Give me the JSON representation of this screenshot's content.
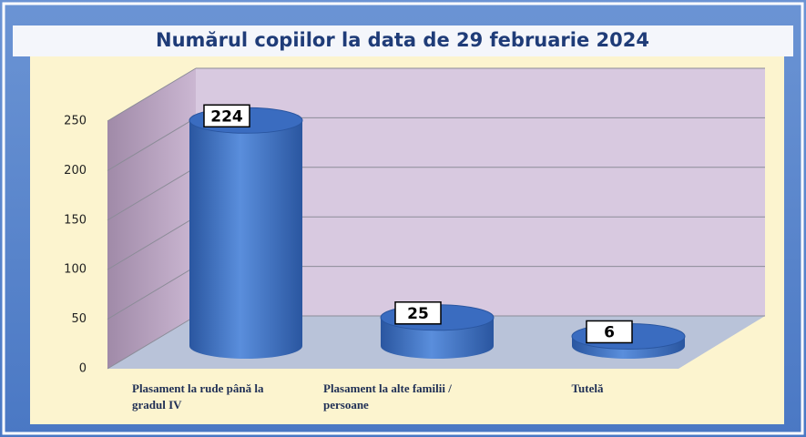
{
  "chart_data": {
    "type": "bar",
    "title": "Numărul copiilor la data de 29 februarie 2024",
    "categories": [
      "Plasament la rude până la gradul IV",
      "Plasament la alte familii / persoane",
      "Tutelă"
    ],
    "values": [
      224,
      25,
      6
    ],
    "color": "#3a6cc0",
    "ylim": [
      0,
      250
    ],
    "yticks": [
      0,
      50,
      100,
      150,
      200,
      250
    ],
    "grid": true
  }
}
